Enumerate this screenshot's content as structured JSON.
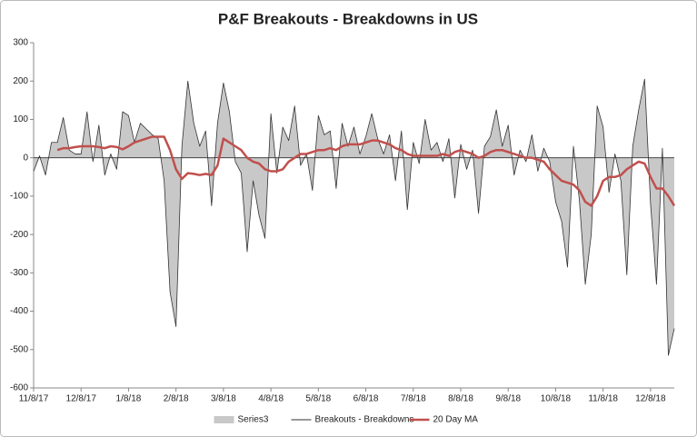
{
  "chart_data": {
    "type": "area-line",
    "title": "P&F Breakouts - Breakdowns in US",
    "categories": [
      "11/8/17",
      null,
      null,
      null,
      null,
      null,
      null,
      null,
      "12/8/17",
      null,
      null,
      null,
      null,
      null,
      null,
      null,
      "1/8/18",
      null,
      null,
      null,
      null,
      null,
      null,
      null,
      "2/8/18",
      null,
      null,
      null,
      null,
      null,
      null,
      null,
      "3/8/18",
      null,
      null,
      null,
      null,
      null,
      null,
      null,
      "4/8/18",
      null,
      null,
      null,
      null,
      null,
      null,
      null,
      "5/8/18",
      null,
      null,
      null,
      null,
      null,
      null,
      null,
      "6/8/18",
      null,
      null,
      null,
      null,
      null,
      null,
      null,
      "7/8/18",
      null,
      null,
      null,
      null,
      null,
      null,
      null,
      "8/8/18",
      null,
      null,
      null,
      null,
      null,
      null,
      null,
      "9/8/18",
      null,
      null,
      null,
      null,
      null,
      null,
      null,
      "10/8/18",
      null,
      null,
      null,
      null,
      null,
      null,
      null,
      "11/8/18",
      null,
      null,
      null,
      null,
      null,
      null,
      null,
      "12/8/18",
      null,
      null,
      null,
      null
    ],
    "series": [
      {
        "name": "Series3",
        "kind": "area",
        "color": "#c8c8c8",
        "values": [
          -35,
          5,
          -45,
          40,
          40,
          105,
          20,
          10,
          10,
          120,
          -10,
          85,
          -45,
          10,
          -30,
          120,
          110,
          40,
          90,
          75,
          60,
          50,
          -60,
          -350,
          -440,
          30,
          200,
          90,
          30,
          70,
          -125,
          90,
          195,
          120,
          -10,
          -40,
          -245,
          -60,
          -150,
          -210,
          115,
          -40,
          80,
          45,
          135,
          -20,
          10,
          -85,
          110,
          60,
          70,
          -80,
          90,
          30,
          80,
          10,
          55,
          115,
          50,
          10,
          60,
          -60,
          70,
          -135,
          40,
          -15,
          100,
          20,
          40,
          -10,
          50,
          -105,
          35,
          -30,
          20,
          -145,
          30,
          55,
          125,
          30,
          85,
          -45,
          20,
          -10,
          60,
          -35,
          25,
          -10,
          -115,
          -165,
          -285,
          30,
          -110,
          -330,
          -200,
          135,
          80,
          -90,
          10,
          -60,
          -305,
          30,
          125,
          205,
          -120,
          -330,
          25,
          -515,
          -445
        ]
      },
      {
        "name": "Breakouts - Breakdowns",
        "kind": "line",
        "color": "#333333",
        "values": [
          -35,
          5,
          -45,
          40,
          40,
          105,
          20,
          10,
          10,
          120,
          -10,
          85,
          -45,
          10,
          -30,
          120,
          110,
          40,
          90,
          75,
          60,
          50,
          -60,
          -350,
          -440,
          30,
          200,
          90,
          30,
          70,
          -125,
          90,
          195,
          120,
          -10,
          -40,
          -245,
          -60,
          -150,
          -210,
          115,
          -40,
          80,
          45,
          135,
          -20,
          10,
          -85,
          110,
          60,
          70,
          -80,
          90,
          30,
          80,
          10,
          55,
          115,
          50,
          10,
          60,
          -60,
          70,
          -135,
          40,
          -15,
          100,
          20,
          40,
          -10,
          50,
          -105,
          35,
          -30,
          20,
          -145,
          30,
          55,
          125,
          30,
          85,
          -45,
          20,
          -10,
          60,
          -35,
          25,
          -10,
          -115,
          -165,
          -285,
          30,
          -110,
          -330,
          -200,
          135,
          80,
          -90,
          10,
          -60,
          -305,
          30,
          125,
          205,
          -120,
          -330,
          25,
          -515,
          -445
        ]
      },
      {
        "name": "20 Day MA",
        "kind": "line",
        "color": "#c0504d",
        "values": [
          null,
          null,
          null,
          null,
          20,
          25,
          25,
          28,
          30,
          30,
          30,
          28,
          25,
          30,
          28,
          22,
          30,
          40,
          45,
          50,
          55,
          55,
          55,
          20,
          -30,
          -55,
          -40,
          -42,
          -45,
          -42,
          -45,
          -20,
          50,
          40,
          30,
          20,
          0,
          -10,
          -15,
          -30,
          -35,
          -35,
          -30,
          -10,
          0,
          10,
          10,
          15,
          20,
          20,
          25,
          20,
          30,
          35,
          35,
          35,
          40,
          45,
          45,
          40,
          35,
          25,
          20,
          10,
          5,
          5,
          5,
          5,
          5,
          10,
          5,
          15,
          20,
          15,
          10,
          0,
          5,
          15,
          20,
          20,
          15,
          10,
          5,
          0,
          0,
          -5,
          -10,
          -30,
          -45,
          -60,
          -65,
          -70,
          -85,
          -115,
          -125,
          -100,
          -60,
          -50,
          -50,
          -45,
          -30,
          -20,
          -10,
          -15,
          -50,
          -80,
          -80,
          -100,
          -125
        ]
      }
    ],
    "ylim": [
      -600,
      300
    ],
    "yticks": [
      300,
      200,
      100,
      0,
      -100,
      -200,
      -300,
      -400,
      -500,
      -600
    ],
    "legend": "bottom"
  }
}
